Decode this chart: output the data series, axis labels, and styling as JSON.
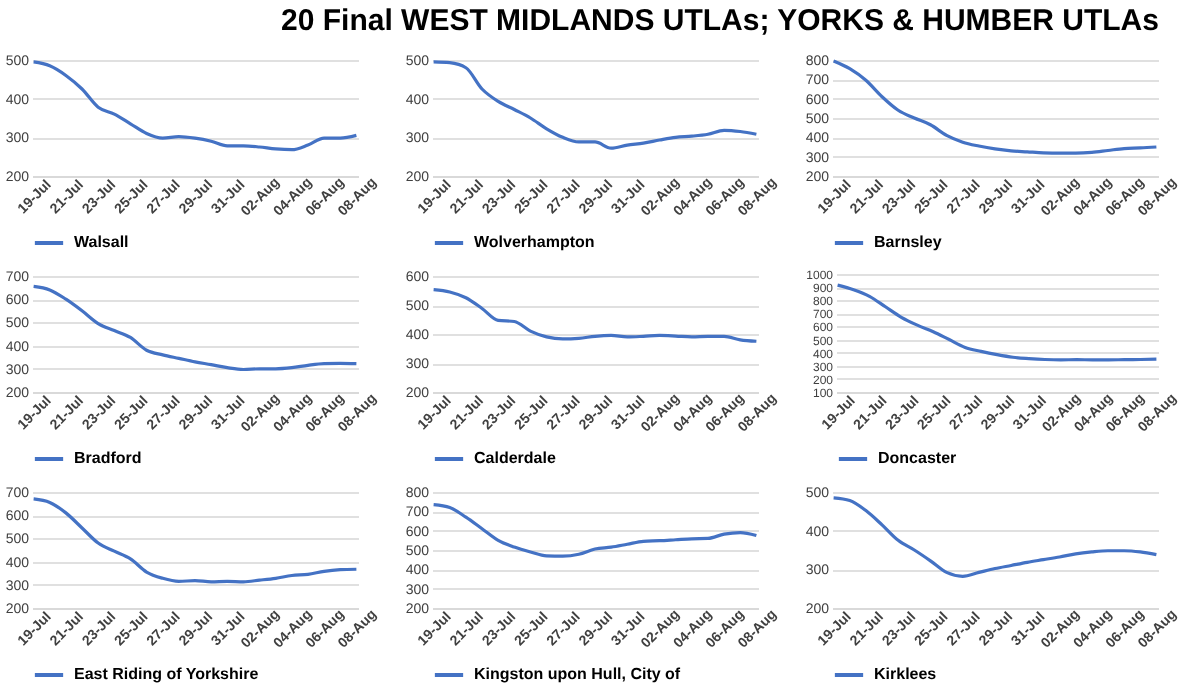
{
  "chart_data": [
    {
      "type": "line",
      "title": "20 Final WEST MIDLANDS UTLAs; YORKS & HUMBER UTLAs",
      "categories": [
        "19-Jul",
        null,
        "21-Jul",
        null,
        "23-Jul",
        null,
        "25-Jul",
        null,
        "27-Jul",
        null,
        "29-Jul",
        null,
        "31-Jul",
        null,
        "02-Aug",
        null,
        "04-Aug",
        null,
        "06-Aug",
        null,
        "08-Aug"
      ],
      "ylim": [
        200,
        500
      ],
      "yticks": [
        200,
        300,
        400,
        500
      ],
      "grid": "y",
      "legend": "bottom",
      "series": [
        {
          "name": "Walsall",
          "color": "#4472c4",
          "values": [
            495,
            485,
            460,
            425,
            378,
            360,
            335,
            310,
            298,
            302,
            298,
            290,
            278,
            278,
            275,
            270,
            268,
            280,
            298,
            298,
            305
          ]
        }
      ]
    },
    {
      "type": "line",
      "categories": [
        "19-Jul",
        null,
        "21-Jul",
        null,
        "23-Jul",
        null,
        "25-Jul",
        null,
        "27-Jul",
        null,
        "29-Jul",
        null,
        "31-Jul",
        null,
        "02-Aug",
        null,
        "04-Aug",
        null,
        "06-Aug",
        null,
        "08-Aug"
      ],
      "ylim": [
        200,
        500
      ],
      "yticks": [
        200,
        300,
        400,
        500
      ],
      "grid": "y",
      "legend": "bottom",
      "series": [
        {
          "name": "Wolverhampton",
          "color": "#4472c4",
          "values": [
            495,
            493,
            480,
            425,
            393,
            372,
            350,
            322,
            300,
            288,
            288,
            272,
            280,
            285,
            293,
            300,
            303,
            308,
            318,
            315,
            308
          ]
        }
      ]
    },
    {
      "type": "line",
      "categories": [
        "19-Jul",
        null,
        "21-Jul",
        null,
        "23-Jul",
        null,
        "25-Jul",
        null,
        "27-Jul",
        null,
        "29-Jul",
        null,
        "31-Jul",
        null,
        "02-Aug",
        null,
        "04-Aug",
        null,
        "06-Aug",
        null,
        "08-Aug"
      ],
      "ylim": [
        200,
        800
      ],
      "yticks": [
        200,
        300,
        400,
        500,
        600,
        700,
        800
      ],
      "grid": "y",
      "legend": "bottom",
      "series": [
        {
          "name": "Barnsley",
          "color": "#4472c4",
          "values": [
            795,
            755,
            695,
            610,
            540,
            500,
            465,
            410,
            375,
            355,
            340,
            330,
            325,
            320,
            318,
            318,
            322,
            332,
            342,
            345,
            350
          ]
        }
      ]
    },
    {
      "type": "line",
      "categories": [
        "19-Jul",
        null,
        "21-Jul",
        null,
        "23-Jul",
        null,
        "25-Jul",
        null,
        "27-Jul",
        null,
        "29-Jul",
        null,
        "31-Jul",
        null,
        "02-Aug",
        null,
        "04-Aug",
        null,
        "06-Aug",
        null,
        "08-Aug"
      ],
      "ylim": [
        200,
        700
      ],
      "yticks": [
        200,
        300,
        400,
        500,
        600,
        700
      ],
      "grid": "y",
      "legend": "bottom",
      "series": [
        {
          "name": "Bradford",
          "color": "#4472c4",
          "values": [
            655,
            640,
            600,
            550,
            495,
            465,
            435,
            380,
            360,
            345,
            330,
            318,
            305,
            297,
            300,
            300,
            305,
            315,
            322,
            323,
            322
          ]
        }
      ]
    },
    {
      "type": "line",
      "categories": [
        "19-Jul",
        null,
        "21-Jul",
        null,
        "23-Jul",
        null,
        "25-Jul",
        null,
        "27-Jul",
        null,
        "29-Jul",
        null,
        "31-Jul",
        null,
        "02-Aug",
        null,
        "04-Aug",
        null,
        "06-Aug",
        null,
        "08-Aug"
      ],
      "ylim": [
        200,
        600
      ],
      "yticks": [
        200,
        300,
        400,
        500,
        600
      ],
      "grid": "y",
      "legend": "bottom",
      "series": [
        {
          "name": "Calderdale",
          "color": "#4472c4",
          "values": [
            553,
            545,
            525,
            488,
            447,
            443,
            410,
            390,
            383,
            385,
            392,
            395,
            390,
            392,
            395,
            393,
            390,
            392,
            392,
            380,
            375
          ]
        }
      ]
    },
    {
      "type": "line",
      "categories": [
        "19-Jul",
        null,
        "21-Jul",
        null,
        "23-Jul",
        null,
        "25-Jul",
        null,
        "27-Jul",
        null,
        "29-Jul",
        null,
        "31-Jul",
        null,
        "02-Aug",
        null,
        "04-Aug",
        null,
        "06-Aug",
        null,
        "08-Aug"
      ],
      "ylim": [
        100,
        1000
      ],
      "yticks": [
        100,
        200,
        300,
        400,
        500,
        600,
        700,
        800,
        900,
        1000
      ],
      "grid": "y",
      "legend": "bottom",
      "series": [
        {
          "name": "Doncaster",
          "color": "#4472c4",
          "values": [
            915,
            880,
            830,
            750,
            670,
            610,
            560,
            500,
            440,
            410,
            385,
            365,
            355,
            348,
            345,
            347,
            345,
            345,
            347,
            348,
            350
          ]
        }
      ]
    },
    {
      "type": "line",
      "categories": [
        "19-Jul",
        null,
        "21-Jul",
        null,
        "23-Jul",
        null,
        "25-Jul",
        null,
        "27-Jul",
        null,
        "29-Jul",
        null,
        "31-Jul",
        null,
        "02-Aug",
        null,
        "04-Aug",
        null,
        "06-Aug",
        null,
        "08-Aug"
      ],
      "ylim": [
        200,
        700
      ],
      "yticks": [
        200,
        300,
        400,
        500,
        600,
        700
      ],
      "grid": "y",
      "legend": "bottom",
      "series": [
        {
          "name": "East Riding of Yorkshire",
          "color": "#4472c4",
          "values": [
            670,
            655,
            610,
            545,
            480,
            445,
            412,
            355,
            328,
            315,
            318,
            313,
            315,
            313,
            320,
            328,
            340,
            345,
            358,
            365,
            367
          ]
        }
      ]
    },
    {
      "type": "line",
      "categories": [
        "19-Jul",
        null,
        "21-Jul",
        null,
        "23-Jul",
        null,
        "25-Jul",
        null,
        "27-Jul",
        null,
        "29-Jul",
        null,
        "31-Jul",
        null,
        "02-Aug",
        null,
        "04-Aug",
        null,
        "06-Aug",
        null,
        "08-Aug"
      ],
      "ylim": [
        200,
        800
      ],
      "yticks": [
        200,
        300,
        400,
        500,
        600,
        700,
        800
      ],
      "grid": "y",
      "legend": "bottom",
      "series": [
        {
          "name": "Kingston upon Hull, City of",
          "color": "#4472c4",
          "values": [
            735,
            720,
            670,
            610,
            550,
            515,
            490,
            470,
            468,
            478,
            505,
            515,
            530,
            545,
            548,
            553,
            558,
            560,
            582,
            590,
            575
          ]
        }
      ]
    },
    {
      "type": "line",
      "categories": [
        "19-Jul",
        null,
        "21-Jul",
        null,
        "23-Jul",
        null,
        "25-Jul",
        null,
        "27-Jul",
        null,
        "29-Jul",
        null,
        "31-Jul",
        null,
        "02-Aug",
        null,
        "04-Aug",
        null,
        "06-Aug",
        null,
        "08-Aug"
      ],
      "ylim": [
        200,
        500
      ],
      "yticks": [
        200,
        300,
        400,
        500
      ],
      "grid": "y",
      "legend": "bottom",
      "series": [
        {
          "name": "Kirklees",
          "color": "#4472c4",
          "values": [
            485,
            478,
            452,
            415,
            375,
            350,
            322,
            292,
            282,
            292,
            302,
            310,
            318,
            325,
            332,
            340,
            345,
            348,
            348,
            345,
            338
          ]
        }
      ]
    }
  ]
}
